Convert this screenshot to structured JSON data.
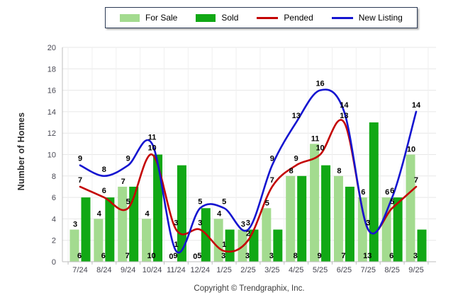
{
  "chart_data": {
    "type": "bar",
    "subtype": "grouped-bars-with-smoothed-lines",
    "categories": [
      "7/24",
      "8/24",
      "9/24",
      "10/24",
      "11/24",
      "12/24",
      "1/25",
      "2/25",
      "3/25",
      "4/25",
      "5/25",
      "6/25",
      "7/25",
      "8/25",
      "9/25"
    ],
    "series": [
      {
        "name": "For Sale",
        "type": "bar",
        "color": "#a3db8f",
        "values": [
          3,
          4,
          7,
          4,
          0,
          0,
          4,
          3,
          5,
          8,
          11,
          8,
          6,
          6,
          10
        ]
      },
      {
        "name": "Sold",
        "type": "bar",
        "color": "#11a815",
        "values": [
          6,
          6,
          7,
          10,
          9,
          5,
          3,
          3,
          3,
          8,
          9,
          7,
          13,
          6,
          3
        ]
      },
      {
        "name": "Pended",
        "type": "line",
        "color": "#c40404",
        "values": [
          7,
          6,
          5,
          10,
          3,
          3,
          1,
          2,
          7,
          9,
          10,
          13,
          3,
          5,
          7
        ]
      },
      {
        "name": "New Listing",
        "type": "line",
        "color": "#1515d0",
        "values": [
          9,
          8,
          9,
          11,
          1,
          5,
          5,
          3,
          9,
          13,
          16,
          14,
          3,
          6,
          14
        ]
      }
    ],
    "title": "",
    "xlabel": "",
    "ylabel": "Number of Homes",
    "ylim": [
      0,
      20
    ],
    "ytick_step": 2,
    "grid": "horizontal",
    "legend_position": "top-center",
    "label_color": "#000000",
    "tick_color": "#474752",
    "axis_color": "#bdbdbd",
    "gridline_color": "#e7e7e7",
    "vgridline_color": "#f0f0f0"
  },
  "footer": {
    "copyright": "Copyright © Trendgraphix, Inc."
  }
}
